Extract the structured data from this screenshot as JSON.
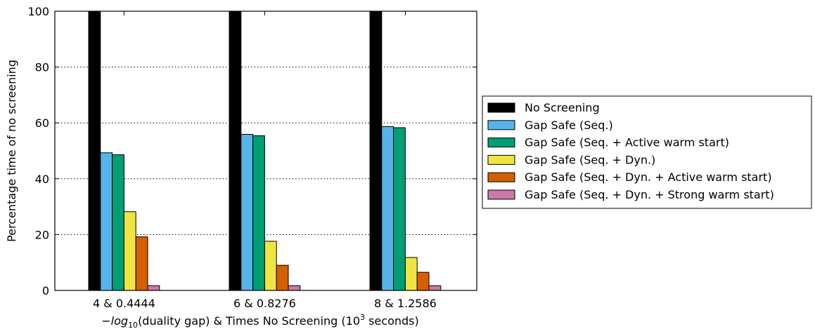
{
  "chart_data": {
    "type": "bar",
    "categories": [
      "4 & 0.4444",
      "6 & 0.8276",
      "8 & 1.2586"
    ],
    "series": [
      {
        "name": "No Screening",
        "color": "#000000",
        "values": [
          100,
          100,
          100
        ]
      },
      {
        "name": "Gap Safe (Seq.)",
        "color": "#56b4e9",
        "values": [
          49.3,
          55.9,
          58.7
        ]
      },
      {
        "name": "Gap Safe (Seq. + Active warm start)",
        "color": "#009e73",
        "values": [
          48.6,
          55.4,
          58.3
        ]
      },
      {
        "name": "Gap Safe (Seq. + Dyn.)",
        "color": "#f0e442",
        "values": [
          28.2,
          17.6,
          11.8
        ]
      },
      {
        "name": "Gap Safe (Seq. + Dyn. + Active warm start)",
        "color": "#d55e00",
        "values": [
          19.2,
          9.0,
          6.5
        ]
      },
      {
        "name": "Gap Safe (Seq. + Dyn. + Strong warm start)",
        "color": "#cc79a7",
        "values": [
          1.7,
          1.7,
          1.7
        ]
      }
    ],
    "xlabel_parts": {
      "pre": "−log",
      "sub": "10",
      "mid": "(duality gap) & Times No Screening (10",
      "sup": "3",
      "post": " seconds)"
    },
    "ylabel": "Percentage time of no screening",
    "ylim": [
      0,
      100
    ],
    "yticks": [
      "0",
      "20",
      "40",
      "60",
      "80",
      "100"
    ],
    "grid": "horizontal-dotted",
    "legend_position": "right"
  }
}
